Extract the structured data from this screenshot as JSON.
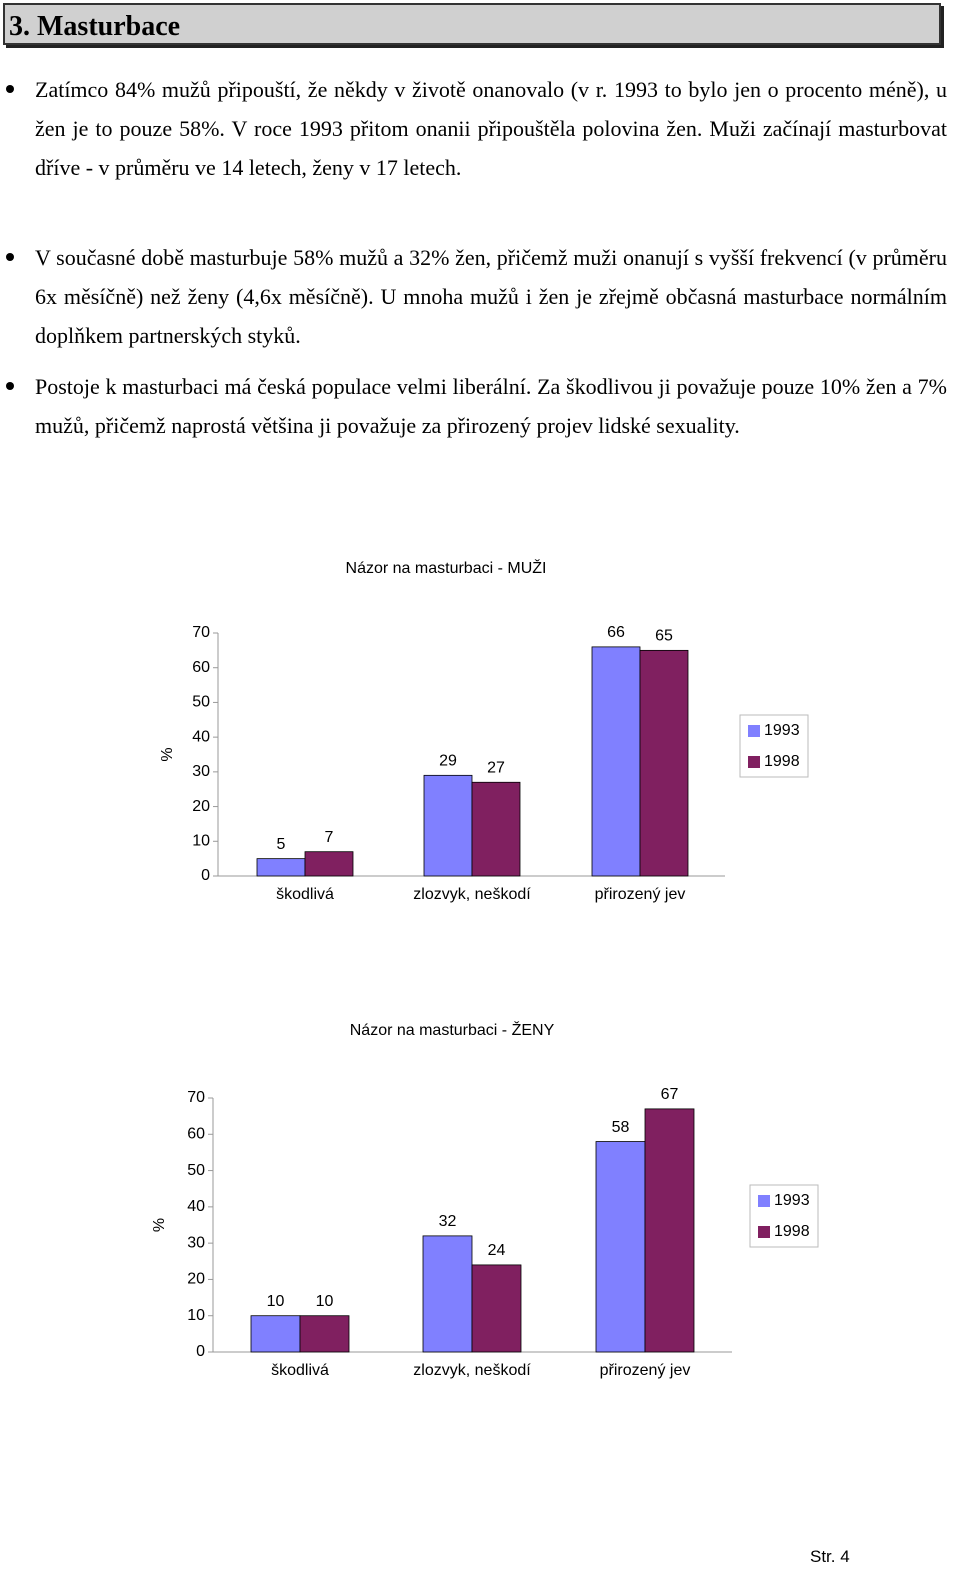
{
  "heading": "3. Masturbace",
  "bullets": [
    "Zatímco 84% mužů připouští, že někdy v životě onanovalo (v  r. 1993 to bylo jen o procento méně), u žen je to pouze 58%. V  roce 1993 přitom onanii připouštěla polovina žen. Muži  začínají masturbovat dříve - v průměru ve 14 letech, ženy v  17 letech.",
    "V současné době masturbuje 58% mužů a 32% žen, přičemž muži  onanují s vyšší frekvencí (v průměru 6x měsíčně) než ženy  (4,6x měsíčně). U mnoha mužů i žen je zřejmě občasná  masturbace normálním doplňkem partnerských styků.",
    "Postoje k masturbaci má česká populace velmi liberální. Za  škodlivou ji považuje pouze 10% žen a 7% mužů, přičemž  naprostá většina ji považuje za přirozený projev lidské  sexuality."
  ],
  "chart_data": [
    {
      "type": "bar",
      "title": "Názor na masturbaci - MUŽI",
      "y_label": "%",
      "categories": [
        "škodlivá",
        "zlozvyk, neškodí",
        "přirozený jev"
      ],
      "series": [
        {
          "name": "1993",
          "color": "#8080ff",
          "values": [
            5,
            29,
            66
          ]
        },
        {
          "name": "1998",
          "color": "#802060",
          "values": [
            7,
            27,
            65
          ]
        }
      ],
      "ylim": [
        0,
        70
      ],
      "yticks": [
        0,
        10,
        20,
        30,
        40,
        50,
        60,
        70
      ],
      "legend": "right"
    },
    {
      "type": "bar",
      "title": "Názor na masturbaci - ŽENY",
      "y_label": "%",
      "categories": [
        "škodlivá",
        "zlozvyk, neškodí",
        "přirozený jev"
      ],
      "series": [
        {
          "name": "1993",
          "color": "#8080ff",
          "values": [
            10,
            32,
            58
          ]
        },
        {
          "name": "1998",
          "color": "#802060",
          "values": [
            10,
            24,
            67
          ]
        }
      ],
      "ylim": [
        0,
        70
      ],
      "yticks": [
        0,
        10,
        20,
        30,
        40,
        50,
        60,
        70
      ],
      "legend": "right"
    }
  ],
  "footer": "Str. 4"
}
